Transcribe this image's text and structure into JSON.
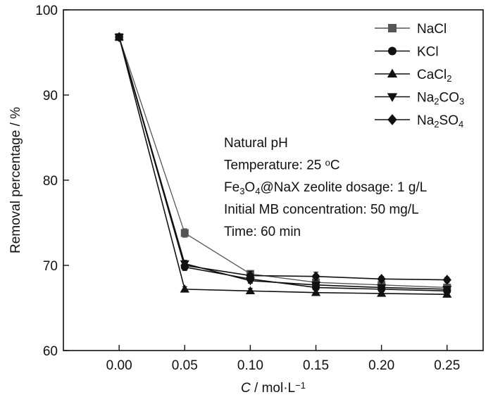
{
  "chart_data": {
    "type": "line",
    "xlabel": {
      "italic": "C",
      "rest": " / mol·L",
      "sup": "−1"
    },
    "ylabel": "Removal percentage / %",
    "xlim": [
      -0.0425,
      0.2775
    ],
    "ylim": [
      60,
      100
    ],
    "x": [
      0.0,
      0.05,
      0.1,
      0.15,
      0.2,
      0.25
    ],
    "x_tick_labels": [
      "0.00",
      "0.05",
      "0.10",
      "0.15",
      "0.20",
      "0.25"
    ],
    "y_ticks": [
      60,
      70,
      80,
      90,
      100
    ],
    "y_tick_labels": [
      "60",
      "70",
      "80",
      "90",
      "100"
    ],
    "grid": false,
    "legend_position": "top-right",
    "series": [
      {
        "name": "NaCl",
        "legend": [
          {
            "t": "NaCl"
          }
        ],
        "marker": "square",
        "color": "#555555",
        "values": [
          96.8,
          73.8,
          69.0,
          68.0,
          67.7,
          67.4
        ],
        "errors": [
          0.3,
          0.5,
          0.4,
          0.3,
          0.3,
          0.3
        ]
      },
      {
        "name": "KCl",
        "legend": [
          {
            "t": "KCl"
          }
        ],
        "marker": "circle",
        "color": "#111111",
        "values": [
          96.8,
          69.8,
          68.4,
          67.4,
          67.2,
          67.0
        ],
        "errors": [
          0.3,
          0.4,
          0.4,
          0.3,
          0.3,
          0.3
        ]
      },
      {
        "name": "CaCl2",
        "legend": [
          {
            "t": "CaCl"
          },
          {
            "t": "2",
            "sub": true
          }
        ],
        "marker": "triangle-up",
        "color": "#111111",
        "values": [
          96.8,
          67.2,
          67.0,
          66.8,
          66.7,
          66.6
        ],
        "errors": [
          0.3,
          0.3,
          0.3,
          0.3,
          0.3,
          0.3
        ]
      },
      {
        "name": "Na2CO3",
        "legend": [
          {
            "t": "Na"
          },
          {
            "t": "2",
            "sub": true
          },
          {
            "t": "CO"
          },
          {
            "t": "3",
            "sub": true
          }
        ],
        "marker": "triangle-down",
        "color": "#111111",
        "values": [
          96.8,
          70.2,
          68.2,
          67.7,
          67.4,
          67.2
        ],
        "errors": [
          0.3,
          0.4,
          0.3,
          0.3,
          0.3,
          0.3
        ]
      },
      {
        "name": "Na2SO4",
        "legend": [
          {
            "t": "Na"
          },
          {
            "t": "2",
            "sub": true
          },
          {
            "t": "SO"
          },
          {
            "t": "4",
            "sub": true
          }
        ],
        "marker": "diamond",
        "color": "#111111",
        "values": [
          96.8,
          70.0,
          68.8,
          68.7,
          68.4,
          68.3
        ],
        "errors": [
          0.3,
          0.4,
          0.5,
          0.5,
          0.3,
          0.3
        ]
      }
    ],
    "annotations": [
      [
        {
          "t": "Natural pH"
        }
      ],
      [
        {
          "t": "Temperature: 25 "
        },
        {
          "t": "o",
          "sup": true
        },
        {
          "t": "C"
        }
      ],
      [
        {
          "t": "Fe"
        },
        {
          "t": "3",
          "sub": true
        },
        {
          "t": "O"
        },
        {
          "t": "4",
          "sub": true
        },
        {
          "t": "@NaX zeolite dosage: 1 g/L"
        }
      ],
      [
        {
          "t": "Initial MB concentration: 50 mg/L"
        }
      ],
      [
        {
          "t": "Time: 60 min"
        }
      ]
    ]
  }
}
